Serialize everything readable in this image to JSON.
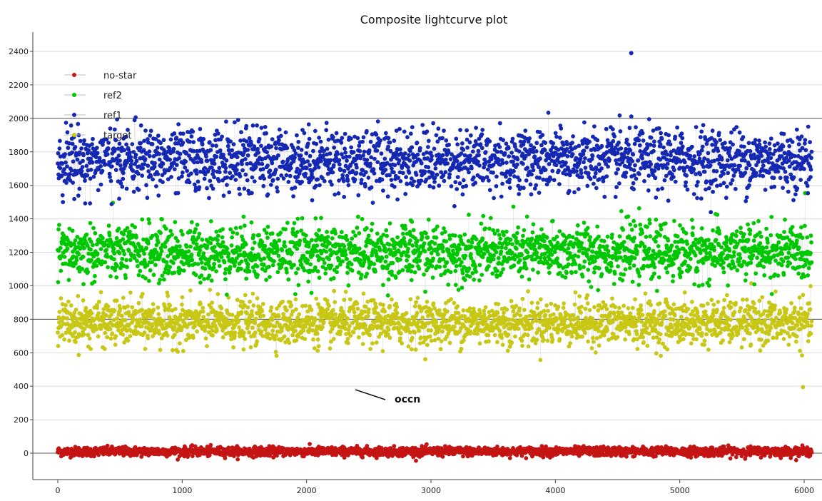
{
  "chart_data": {
    "type": "scatter",
    "title": "Composite lightcurve plot",
    "xlabel": "",
    "ylabel": "",
    "xlim": [
      -200,
      6150
    ],
    "ylim": [
      -150,
      2520
    ],
    "x_ticks": [
      0,
      1000,
      2000,
      3000,
      4000,
      5000,
      6000
    ],
    "y_ticks": [
      0,
      200,
      400,
      600,
      800,
      1000,
      1200,
      1400,
      1600,
      1800,
      2000,
      2200,
      2400
    ],
    "reference_lines_y": [
      0,
      800,
      2000
    ],
    "grid": true,
    "legend_position": "top-left",
    "x_range": [
      0,
      6060
    ],
    "series": [
      {
        "name": "no-star",
        "color": "#c41414",
        "mean": 10,
        "spread": 25,
        "min": -50,
        "max": 120
      },
      {
        "name": "ref2",
        "color": "#00c800",
        "mean": 1200,
        "spread": 150,
        "min": 870,
        "max": 1560
      },
      {
        "name": "ref1",
        "color": "#1428b4",
        "mean": 1750,
        "spread": 170,
        "min": 1360,
        "max": 2390
      },
      {
        "name": "target",
        "color": "#c8c814",
        "mean": 780,
        "spread": 120,
        "min": 395,
        "max": 1150
      }
    ],
    "annotations": [
      {
        "text": "occn",
        "x": 2350,
        "y": 430
      }
    ]
  }
}
